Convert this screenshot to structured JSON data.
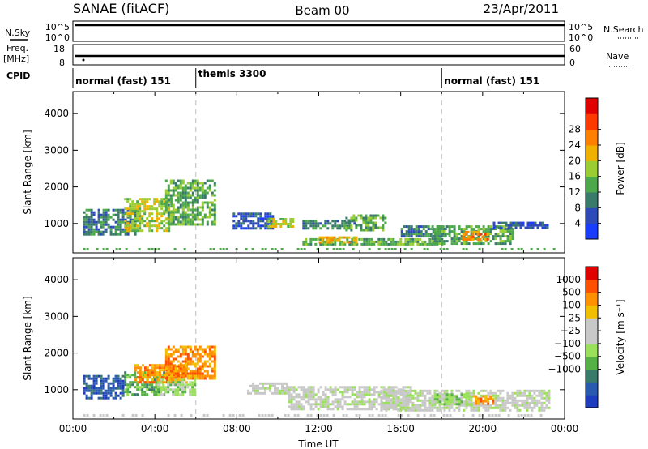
{
  "header": {
    "station": "SANAE (fitACF)",
    "beam": "Beam 00",
    "date": "23/Apr/2011"
  },
  "strip_labels": {
    "nsky": "N.Sky",
    "nsearch": "N.Search",
    "freq_top": "Freq.",
    "freq_unit": "[MHz]",
    "nave": "Nave",
    "cpid": "CPID",
    "nsky_ticks": [
      "10^5",
      "10^0"
    ],
    "nsearch_ticks": [
      "10^5",
      "10^0"
    ],
    "freq_ticks": [
      "18",
      "8"
    ],
    "nave_ticks": [
      "60",
      "0"
    ]
  },
  "cpid_segments": [
    {
      "label": "normal (fast) 151",
      "start_hour": 0
    },
    {
      "label": "themis 3300",
      "start_hour": 6
    },
    {
      "label": "normal (fast) 151",
      "start_hour": 18
    }
  ],
  "chart_data": [
    {
      "type": "heatmap",
      "ylabel": "Slant Range [km]",
      "xlim_hours": [
        0,
        24
      ],
      "ylim": [
        200,
        4600
      ],
      "y_ticks": [
        1000,
        2000,
        3000,
        4000
      ],
      "colorbar": {
        "label": "Power [dB]",
        "ticks": [
          "4",
          "8",
          "12",
          "16",
          "20",
          "24",
          "28"
        ],
        "colors": [
          "#1a3cff",
          "#2e49b8",
          "#3a7a6a",
          "#4ca84a",
          "#9acd32",
          "#f0b000",
          "#ff8000",
          "#ff3a00",
          "#e00000"
        ]
      },
      "echo_regions": [
        {
          "t0": 0.5,
          "t1": 3.0,
          "r0": 700,
          "r1": 1400,
          "level": 2
        },
        {
          "t0": 2.5,
          "t1": 4.8,
          "r0": 800,
          "r1": 1700,
          "level": 4
        },
        {
          "t0": 4.5,
          "t1": 6.9,
          "r0": 1000,
          "r1": 2200,
          "level": 3
        },
        {
          "t0": 7.8,
          "t1": 9.8,
          "r0": 850,
          "r1": 1300,
          "level": 1
        },
        {
          "t0": 9.5,
          "t1": 10.8,
          "r0": 900,
          "r1": 1150,
          "level": 4
        },
        {
          "t0": 11.2,
          "t1": 13.8,
          "r0": 900,
          "r1": 1100,
          "level": 2
        },
        {
          "t0": 13.3,
          "t1": 15.2,
          "r0": 850,
          "r1": 1250,
          "level": 3
        },
        {
          "t0": 11.2,
          "t1": 18.0,
          "r0": 450,
          "r1": 600,
          "level": 3
        },
        {
          "t0": 12.0,
          "t1": 13.8,
          "r0": 500,
          "r1": 650,
          "level": 5
        },
        {
          "t0": 16.0,
          "t1": 18.2,
          "r0": 650,
          "r1": 950,
          "level": 2
        },
        {
          "t0": 17.5,
          "t1": 21.5,
          "r0": 450,
          "r1": 950,
          "level": 3
        },
        {
          "t0": 19.0,
          "t1": 20.3,
          "r0": 550,
          "r1": 800,
          "level": 6
        },
        {
          "t0": 20.5,
          "t1": 23.2,
          "r0": 900,
          "r1": 1050,
          "level": 1
        }
      ]
    },
    {
      "type": "heatmap",
      "ylabel": "Slant Range [km]",
      "xlabel": "Time UT",
      "xlim_hours": [
        0,
        24
      ],
      "ylim": [
        200,
        4600
      ],
      "y_ticks": [
        1000,
        2000,
        3000,
        4000
      ],
      "x_ticks": [
        "00:00",
        "04:00",
        "08:00",
        "12:00",
        "16:00",
        "20:00",
        "00:00"
      ],
      "colorbar": {
        "label": "Velocity [m s⁻¹]",
        "ticks": [
          "1000",
          "500",
          "100",
          "25",
          "−25",
          "−100",
          "−500",
          "−1000"
        ],
        "colors": [
          "#1e3cbf",
          "#2a5ab0",
          "#3a7a6a",
          "#55b046",
          "#9be05a",
          "#c8c8c8",
          "#c8c8c8",
          "#f0c000",
          "#ff9000",
          "#ff5000",
          "#e00000"
        ]
      },
      "echo_regions": [
        {
          "t0": 0.5,
          "t1": 2.5,
          "r0": 800,
          "r1": 1400,
          "level": 1
        },
        {
          "t0": 2.5,
          "t1": 4.5,
          "r0": 900,
          "r1": 1500,
          "level": 3
        },
        {
          "t0": 3.0,
          "t1": 5.5,
          "r0": 1200,
          "r1": 1700,
          "level": 8
        },
        {
          "t0": 4.5,
          "t1": 6.9,
          "r0": 1300,
          "r1": 2200,
          "level": 8
        },
        {
          "t0": 4.0,
          "t1": 6.0,
          "r0": 900,
          "r1": 1300,
          "level": 4
        },
        {
          "t0": 8.5,
          "t1": 10.5,
          "r0": 900,
          "r1": 1200,
          "level": 5
        },
        {
          "t0": 10.5,
          "t1": 16.5,
          "r0": 450,
          "r1": 1100,
          "level": 5
        },
        {
          "t0": 15.0,
          "t1": 23.2,
          "r0": 450,
          "r1": 1000,
          "level": 5
        },
        {
          "t0": 17.5,
          "t1": 19.5,
          "r0": 600,
          "r1": 900,
          "level": 4
        },
        {
          "t0": 19.5,
          "t1": 20.5,
          "r0": 650,
          "r1": 850,
          "level": 8
        }
      ]
    }
  ]
}
